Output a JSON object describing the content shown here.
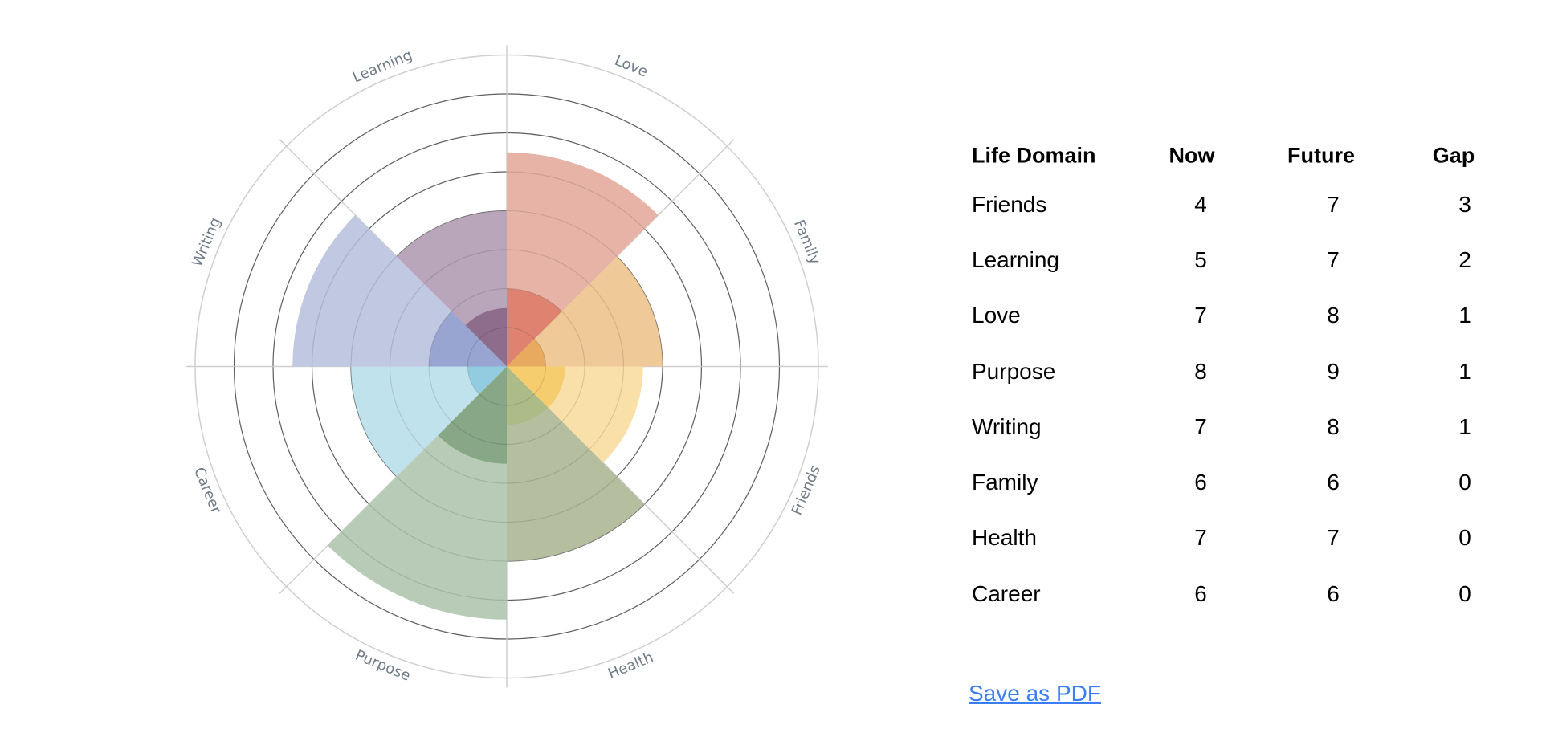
{
  "chart_data": {
    "type": "barpolar",
    "categories": [
      "Love",
      "Family",
      "Friends",
      "Health",
      "Purpose",
      "Career",
      "Writing",
      "Learning"
    ],
    "radial_range": [
      0,
      8
    ],
    "radial_grid_step": 1,
    "series": [
      {
        "values": [
          5.5,
          4,
          3.5,
          5,
          6.5,
          4,
          5.5,
          4
        ],
        "colors": [
          "#e8b3a7",
          "#efca98",
          "#f9e0a8",
          "#b5bf9f",
          "#b8cbb7",
          "#c0e2ed",
          "#c0c8e2",
          "#b9a6ba"
        ]
      },
      {
        "values": [
          2,
          1,
          1.5,
          1.5,
          2.5,
          1,
          2,
          1.5
        ],
        "colors": [
          "#df8270",
          "#e8aa5e",
          "#f6cd6e",
          "#adbb88",
          "#88a786",
          "#93cce1",
          "#98a5d0",
          "#8d6d8b"
        ]
      }
    ],
    "grid": true,
    "label_color": "#6f7b88"
  },
  "table": {
    "headers": {
      "domain": "Life Domain",
      "now": "Now",
      "future": "Future",
      "gap": "Gap"
    },
    "rows": [
      {
        "domain": "Friends",
        "now": "4",
        "future": "7",
        "gap": "3"
      },
      {
        "domain": "Learning",
        "now": "5",
        "future": "7",
        "gap": "2"
      },
      {
        "domain": "Love",
        "now": "7",
        "future": "8",
        "gap": "1"
      },
      {
        "domain": "Purpose",
        "now": "8",
        "future": "9",
        "gap": "1"
      },
      {
        "domain": "Writing",
        "now": "7",
        "future": "8",
        "gap": "1"
      },
      {
        "domain": "Family",
        "now": "6",
        "future": "6",
        "gap": "0"
      },
      {
        "domain": "Health",
        "now": "7",
        "future": "7",
        "gap": "0"
      },
      {
        "domain": "Career",
        "now": "6",
        "future": "6",
        "gap": "0"
      }
    ]
  },
  "save_link": {
    "label": "Save as PDF",
    "color": "#3b7df5"
  }
}
